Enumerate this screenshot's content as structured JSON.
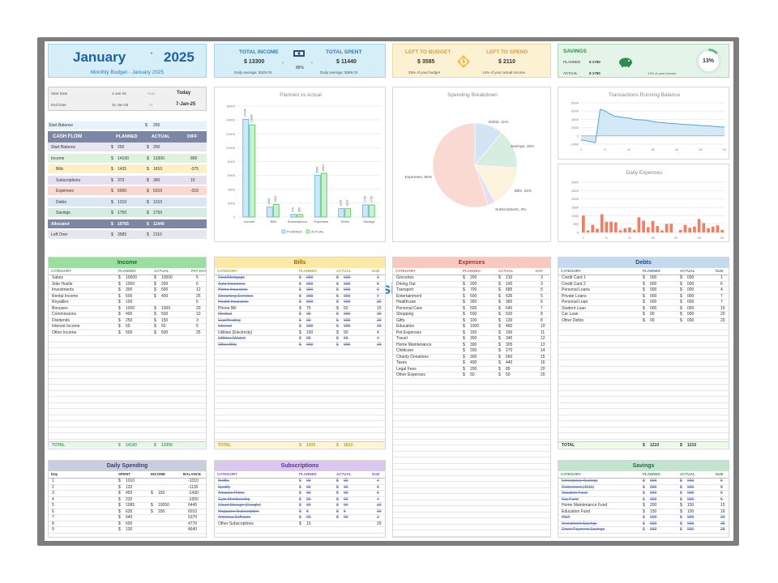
{
  "header": {
    "month": "January",
    "year": "2025",
    "subtitle": "Monthly Budget - January 2025"
  },
  "income_card": {
    "title_income": "TOTAL INCOME",
    "income": "$ 13300",
    "title_spent": "TOTAL SPENT",
    "spent": "$ 11440",
    "pct": "86%",
    "avg_income": "Daily average: $429.03",
    "avg_spent": "Daily average: $369.03"
  },
  "left_card": {
    "title_budget": "LEFT TO BUDGET",
    "budget": "$ 3585",
    "title_spend": "LEFT TO SPEND",
    "spend": "$ 2110",
    "note_budget": "25% of your budget",
    "note_spend": "14% of your actual income"
  },
  "savings_card": {
    "title": "SAVINGS",
    "planned_label": "PLANNED",
    "planned": "$ 1750",
    "actual_label": "ACTUAL",
    "actual": "$ 1750",
    "note": "13% of your income",
    "pct": "13%",
    "pct_value": 13
  },
  "dates": {
    "start_label": "Start Date",
    "start": "1-Jan-25",
    "start_day": "Date",
    "today_label": "Today",
    "end_label": "End Date",
    "end": "31-Jan-25",
    "end_day": "31",
    "today": "7-Jan-25"
  },
  "start_balance": {
    "label": "Start Balance",
    "cur": "$",
    "value": "250"
  },
  "cashflow": {
    "headers": [
      "CASH FLOW",
      "PLANNED",
      "ACTUAL",
      "DIFF"
    ],
    "rows": [
      {
        "label": "Start Balance",
        "p": "250",
        "a": "250",
        "d": "",
        "bg": "#e6e6ee",
        "indent": false
      },
      {
        "label": "Income",
        "p": "14100",
        "a": "13300",
        "d": "800",
        "bg": "#dff2df",
        "indent": false
      },
      {
        "label": "Bills",
        "p": "1435",
        "a": "1810",
        "d": "-375",
        "bg": "#fdf0c4",
        "indent": true
      },
      {
        "label": "Subscriptions",
        "p": "370",
        "a": "360",
        "d": "10",
        "bg": "#e7def2",
        "indent": true
      },
      {
        "label": "Expenses",
        "p": "6000",
        "a": "6310",
        "d": "-310",
        "bg": "#f9d9d2",
        "indent": true
      },
      {
        "label": "Debts",
        "p": "1210",
        "a": "1210",
        "d": "",
        "bg": "#dae6f4",
        "indent": true
      },
      {
        "label": "Savings",
        "p": "1750",
        "a": "1750",
        "d": "",
        "bg": "#d4ece2",
        "indent": true
      },
      {
        "label": "Allocated",
        "p": "10765",
        "a": "11440",
        "d": "",
        "bg": "#7c87a5",
        "indent": false
      },
      {
        "label": "Left Over",
        "p": "3585",
        "a": "2110",
        "d": "",
        "bg": "#e6e6ee",
        "indent": false
      }
    ]
  },
  "chart_data": [
    {
      "type": "bar",
      "title": "Planned vs Actual",
      "categories": [
        "Income",
        "Bills",
        "Subscriptions",
        "Expenses",
        "Debts",
        "Savings"
      ],
      "series": [
        {
          "name": "PLANNED",
          "values": [
            14100,
            1435,
            370,
            6000,
            1210,
            1750
          ]
        },
        {
          "name": "ACTUAL",
          "values": [
            13300,
            1810,
            360,
            6310,
            1210,
            1750
          ]
        }
      ],
      "ylim": [
        0,
        16000
      ],
      "yticks": [
        "0",
        "2000",
        "4000",
        "6000",
        "8000",
        "10000",
        "12000",
        "14000",
        "16000"
      ],
      "legend": "bottom"
    },
    {
      "type": "pie",
      "title": "Spending Breakdown",
      "slices": [
        {
          "label": "Debts, 11%",
          "value": 11,
          "color": "#d5e4f5"
        },
        {
          "label": "Savings, 15%",
          "value": 15,
          "color": "#d6eedf"
        },
        {
          "label": "Bills, 16%",
          "value": 16,
          "color": "#fdf3dc"
        },
        {
          "label": "Subscriptions, 3%",
          "value": 3,
          "color": "#e8def4"
        },
        {
          "label": "Expenses, 55%",
          "value": 55,
          "color": "#f9d9d2"
        }
      ]
    },
    {
      "type": "area",
      "title": "Transactions Running Balance",
      "x": [
        1,
        2,
        3,
        4,
        5,
        6,
        7,
        8,
        9,
        10,
        11,
        12,
        13,
        14,
        15,
        16,
        17,
        18,
        19,
        20,
        21,
        22,
        23,
        24,
        25,
        26,
        27,
        28,
        29,
        30,
        31
      ],
      "values": [
        -1010,
        -1130,
        -1430,
        -1650,
        6445,
        6010,
        5370,
        4770,
        4640,
        4400,
        4350,
        4000,
        3900,
        3850,
        3700,
        3500,
        3300,
        3200,
        3100,
        3000,
        2950,
        2800,
        2750,
        2700,
        2600,
        2500,
        2450,
        2400,
        2300,
        2200,
        2110
      ],
      "xticks": [
        "1",
        "6",
        "11",
        "16",
        "21",
        "26",
        "31"
      ],
      "yticks": [
        "8000",
        "6000",
        "4000",
        "2000",
        "0",
        "-2000"
      ],
      "ylim": [
        -2000,
        8000
      ]
    },
    {
      "type": "bar",
      "title": "Daily Expenses",
      "x": [
        1,
        2,
        3,
        4,
        5,
        6,
        7,
        8,
        9,
        10,
        11,
        12,
        13,
        14,
        15,
        16,
        17,
        18,
        19,
        20,
        21,
        22,
        23,
        24,
        25,
        26,
        27,
        28,
        29,
        30,
        31
      ],
      "values": [
        1010,
        120,
        450,
        220,
        1085,
        635,
        640,
        600,
        130,
        240,
        300,
        150,
        900,
        700,
        320,
        680,
        380,
        120,
        500,
        520,
        0,
        150,
        450,
        280,
        350,
        800,
        560,
        250,
        350,
        420,
        150
      ],
      "xticks": [
        "1",
        "6",
        "11",
        "16",
        "21",
        "26",
        "31"
      ],
      "yticks": [
        "0",
        "500",
        "1000",
        "1500",
        "2000",
        "2500",
        "3000"
      ],
      "ylim": [
        0,
        3000
      ]
    }
  ],
  "income": {
    "title": "Income",
    "headers": [
      "CATEGORY",
      "PLANNED",
      "ACTUAL",
      "PAY DAY"
    ],
    "rows": [
      [
        "Salary",
        "$",
        "10000",
        "$",
        "10000",
        "5"
      ],
      [
        "Side Hustle",
        "$",
        "1000",
        "$",
        "200",
        "6"
      ],
      [
        "Investments",
        "$",
        "300",
        "$",
        "500",
        "12"
      ],
      [
        "Rental Income",
        "$",
        "500",
        "$",
        "400",
        "25"
      ],
      [
        "Royalties",
        "$",
        "100",
        "",
        "",
        "5"
      ],
      [
        "Bonuses",
        "$",
        "1000",
        "$",
        "1000",
        "20"
      ],
      [
        "Commissions",
        "$",
        "400",
        "$",
        "500",
        "10"
      ],
      [
        "Dividends",
        "$",
        "250",
        "$",
        "150",
        "3"
      ],
      [
        "Interest Income",
        "$",
        "50",
        "$",
        "50",
        "5"
      ],
      [
        "Other Income",
        "$",
        "500",
        "$",
        "500",
        "25"
      ]
    ],
    "total": [
      "TOTAL",
      "$",
      "14100",
      "$",
      "13300"
    ]
  },
  "bills": {
    "title": "Bills",
    "headers": [
      "CATEGORY",
      "PLANNED",
      "ACTUAL",
      "DUE"
    ],
    "rows": [
      [
        "Rent/Mortgage",
        "$",
        "000",
        "$",
        "000",
        "1",
        true
      ],
      [
        "Auto Insurance",
        "$",
        "000",
        "$",
        "000",
        "5",
        true
      ],
      [
        "Home Insurance",
        "$",
        "000",
        "$",
        "000",
        "9",
        true
      ],
      [
        "Streaming Services",
        "$",
        "000",
        "$",
        "000",
        "7",
        true
      ],
      [
        "Health Insurance",
        "$",
        "000",
        "$",
        "000",
        "20",
        true
      ],
      [
        "Phone Bill",
        "$",
        "75",
        "$",
        "50",
        "15",
        false
      ],
      [
        "Medical",
        "$",
        "00",
        "$",
        "000",
        "20",
        true
      ],
      [
        "Gas/Heating",
        "$",
        "00",
        "$",
        "000",
        "20",
        true
      ],
      [
        "Internet",
        "$",
        "000",
        "$",
        "000",
        "20",
        true
      ],
      [
        "Utilities (Electricity)",
        "$",
        "150",
        "$",
        "90",
        "4",
        false
      ],
      [
        "Utilities (Water)",
        "$",
        "00",
        "$",
        "00",
        "4",
        true
      ],
      [
        "Other Bills",
        "$",
        "000",
        "$",
        "000",
        "20",
        true
      ]
    ],
    "total": [
      "TOTAL",
      "$",
      "1435",
      "$",
      "1810"
    ]
  },
  "expenses": {
    "title": "Expenses",
    "headers": [
      "CATEGORY",
      "PLANNED",
      "ACTUAL",
      "DAY"
    ],
    "rows": [
      [
        "Groceries",
        "$",
        "200",
        "$",
        "210",
        "3"
      ],
      [
        "Dining Out",
        "$",
        "200",
        "$",
        "190",
        "3"
      ],
      [
        "Transport",
        "$",
        "700",
        "$",
        "685",
        "5"
      ],
      [
        "Entertainment",
        "$",
        "500",
        "$",
        "635",
        "5"
      ],
      [
        "Healthcare",
        "$",
        "300",
        "$",
        "365",
        "6"
      ],
      [
        "Personal Care",
        "$",
        "500",
        "$",
        "640",
        "7"
      ],
      [
        "Shopping",
        "$",
        "500",
        "$",
        "520",
        "8"
      ],
      [
        "Gifts",
        "$",
        "100",
        "$",
        "130",
        "8"
      ],
      [
        "Education",
        "$",
        "1000",
        "$",
        "460",
        "10"
      ],
      [
        "Pet Expenses",
        "$",
        "150",
        "$",
        "190",
        "11"
      ],
      [
        "Travel",
        "$",
        "300",
        "$",
        "345",
        "12"
      ],
      [
        "Home Maintenance",
        "$",
        "300",
        "$",
        "305",
        "13"
      ],
      [
        "Childcare",
        "$",
        "200",
        "$",
        "270",
        "14"
      ],
      [
        "Charity Donations",
        "$",
        "300",
        "$",
        "560",
        "15"
      ],
      [
        "Taxes",
        "$",
        "400",
        "$",
        "440",
        "16"
      ],
      [
        "Legal Fees",
        "$",
        "200",
        "$",
        "85",
        "20"
      ],
      [
        "Other Expenses",
        "$",
        "50",
        "$",
        "50",
        "20"
      ]
    ]
  },
  "debts": {
    "title": "Debts",
    "headers": [
      "CATEGORY",
      "PLANNED",
      "ACTUAL",
      "DUE"
    ],
    "rows": [
      [
        "Credit Card 1",
        "$",
        "000",
        "$",
        "000",
        "1"
      ],
      [
        "Credit Card 2",
        "$",
        "000",
        "$",
        "000",
        "6"
      ],
      [
        "Personal Loans",
        "$",
        "000",
        "$",
        "000",
        "4"
      ],
      [
        "Private Loans",
        "$",
        "000",
        "$",
        "000",
        "7"
      ],
      [
        "Personal Loan",
        "$",
        "000",
        "$",
        "000",
        "7"
      ],
      [
        "Student Loan",
        "$",
        "000",
        "$",
        "000",
        "15"
      ],
      [
        "Car Loan",
        "$",
        "00",
        "$",
        "000",
        "20"
      ],
      [
        "Other Debts",
        "$",
        "00",
        "$",
        "000",
        "20"
      ]
    ],
    "total": [
      "TOTAL",
      "$",
      "1210",
      "$",
      "1210"
    ]
  },
  "daily": {
    "title": "Daily Spending",
    "headers": [
      "Day",
      "SPENT",
      "INCOME",
      "BALANCE"
    ],
    "rows": [
      [
        "1",
        "$",
        "1010",
        "",
        "",
        "-1010"
      ],
      [
        "2",
        "$",
        "120",
        "",
        "",
        "-1130"
      ],
      [
        "3",
        "$",
        "450",
        "$",
        "150",
        "-1430"
      ],
      [
        "4",
        "$",
        "220",
        "",
        "",
        "-1650"
      ],
      [
        "5",
        "$",
        "1085",
        "$",
        "10050",
        "6445"
      ],
      [
        "6",
        "$",
        "635",
        "$",
        "200",
        "6010"
      ],
      [
        "7",
        "$",
        "640",
        "",
        "",
        "5370"
      ],
      [
        "8",
        "$",
        "600",
        "",
        "",
        "4770"
      ],
      [
        "9",
        "$",
        "130",
        "",
        "",
        "4640"
      ]
    ]
  },
  "subs": {
    "title": "Subscriptions",
    "headers": [
      "CATEGORY",
      "PLANNED",
      "ACTUAL",
      "DUE"
    ],
    "rows": [
      [
        "Netflix",
        "$",
        "00",
        "$",
        "00",
        "4",
        true
      ],
      [
        "Spotify",
        "$",
        "00",
        "$",
        "00",
        "5",
        true
      ],
      [
        "Amazon Prime",
        "$",
        "00",
        "$",
        "00",
        "6",
        true
      ],
      [
        "Gym Membership",
        "$",
        "00",
        "$",
        "00",
        "4",
        true
      ],
      [
        "Cloud Storage (Google)",
        "$",
        "00",
        "$",
        "00",
        "10",
        true
      ],
      [
        "Magazine Subscription",
        "$",
        "5",
        "$",
        "5",
        "10",
        true
      ],
      [
        "Antivirus Software",
        "$",
        "00",
        "$",
        "00",
        "2",
        true
      ],
      [
        "Other Subscriptions",
        "$",
        "10",
        "",
        "",
        "25",
        false
      ]
    ]
  },
  "savings": {
    "title": "Savings",
    "headers": [
      "CATEGORY",
      "PLANNED",
      "ACTUAL",
      "DUE"
    ],
    "rows": [
      [
        "Emergency Savings",
        "$",
        "000",
        "$",
        "000",
        "5",
        true
      ],
      [
        "Retirement (401k)",
        "$",
        "000",
        "$",
        "000",
        "8",
        true
      ],
      [
        "Vacation Fund",
        "$",
        "000",
        "$",
        "000",
        "5",
        true
      ],
      [
        "Car Fund",
        "$",
        "000",
        "$",
        "000",
        "5",
        true
      ],
      [
        "Home Maintenance Fund",
        "$",
        "200",
        "$",
        "150",
        "15",
        false
      ],
      [
        "Education Fund",
        "$",
        "150",
        "$",
        "100",
        "16",
        false
      ],
      [
        "HSA",
        "$",
        "000",
        "$",
        "000",
        "20",
        true
      ],
      [
        "Investment Savings",
        "$",
        "000",
        "$",
        "000",
        "25",
        true
      ],
      [
        "Down Payment Savings",
        "$",
        "000",
        "$",
        "000",
        "25",
        true
      ]
    ]
  },
  "watermark": "analysistabs",
  "colors": {
    "blue": "#2a7cc7",
    "income_hdr": "#9bdea0",
    "bills_hdr": "#fde9a6",
    "exp_hdr": "#f7c9bf",
    "debts_hdr": "#c5d9ef",
    "daily_hdr": "#c9cde0",
    "subs_hdr": "#d8c8ee",
    "sav_hdr": "#c3e5d0"
  }
}
